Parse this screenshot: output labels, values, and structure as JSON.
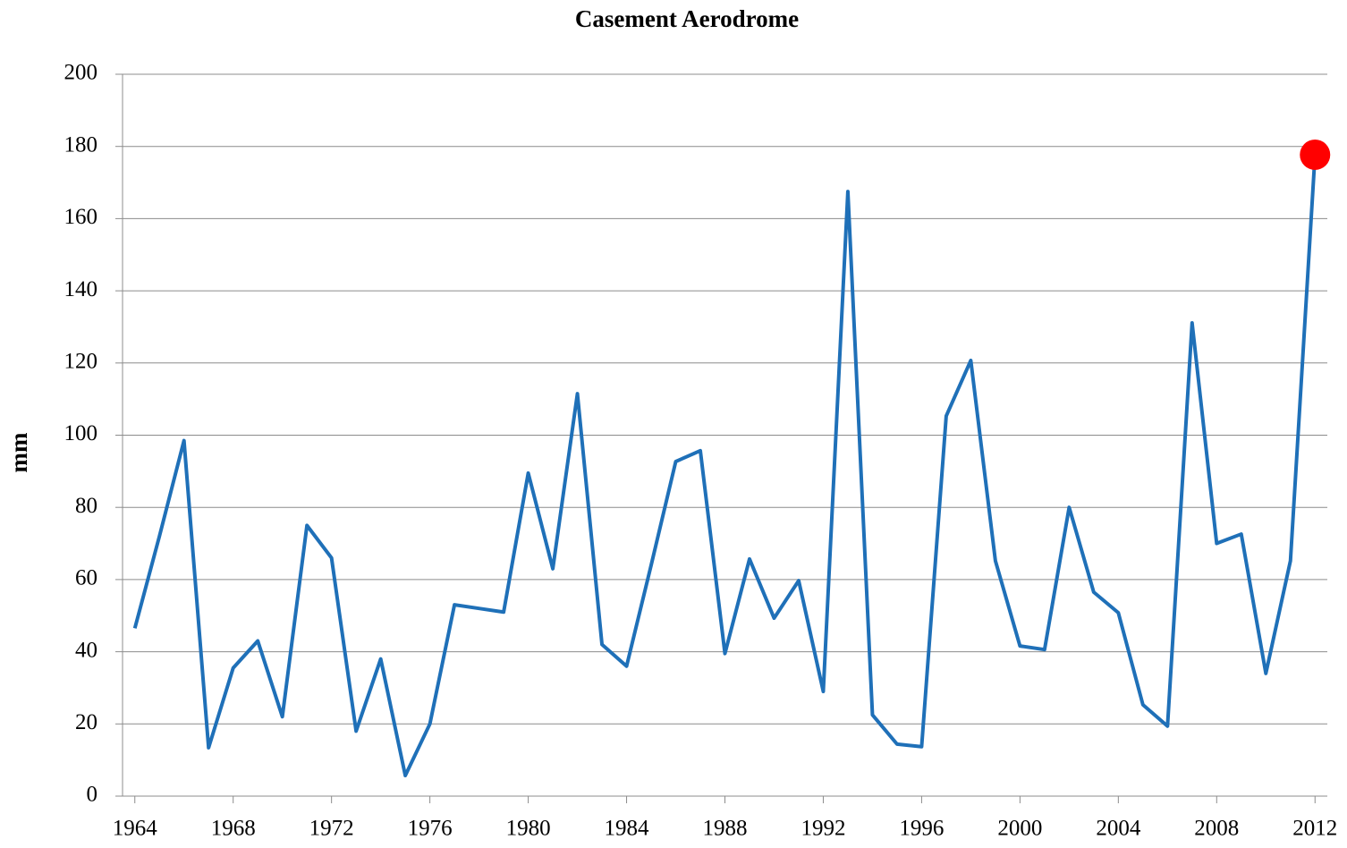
{
  "chart_data": {
    "type": "line",
    "title": "Casement Aerodrome",
    "y_label": "mm",
    "x": [
      1964,
      1965,
      1966,
      1967,
      1968,
      1969,
      1970,
      1971,
      1972,
      1973,
      1974,
      1975,
      1976,
      1977,
      1978,
      1979,
      1980,
      1981,
      1982,
      1983,
      1984,
      1985,
      1986,
      1987,
      1988,
      1989,
      1990,
      1991,
      1992,
      1993,
      1994,
      1995,
      1996,
      1997,
      1998,
      1999,
      2000,
      2001,
      2002,
      2003,
      2004,
      2005,
      2006,
      2007,
      2008,
      2009,
      2010,
      2011,
      2012
    ],
    "values": [
      46.5,
      72,
      98.5,
      13.4,
      35.5,
      43,
      22,
      75,
      66,
      18,
      38,
      5.7,
      20,
      53,
      52,
      51,
      89.5,
      63,
      111.5,
      42,
      36,
      64,
      92.7,
      95.7,
      39.5,
      65.7,
      49.3,
      59.7,
      29,
      167.5,
      22.5,
      14.4,
      13.7,
      105.3,
      120.7,
      65.2,
      41.6,
      40.6,
      80,
      56.5,
      50.8,
      25.3,
      19.4,
      131.1,
      70,
      72.6,
      34,
      65.2,
      177.7
    ],
    "color": "#1f70b8",
    "highlight_points": [
      48
    ],
    "highlight_color": "#ff0000",
    "xlim": [
      1963.5,
      2012.5
    ],
    "xticks": [
      1964,
      1968,
      1972,
      1976,
      1980,
      1984,
      1988,
      1992,
      1996,
      2000,
      2004,
      2008,
      2012
    ],
    "ylim": [
      0,
      200
    ],
    "yticks": [
      0,
      20,
      40,
      60,
      80,
      100,
      120,
      140,
      160,
      180,
      200
    ],
    "grid": true
  }
}
